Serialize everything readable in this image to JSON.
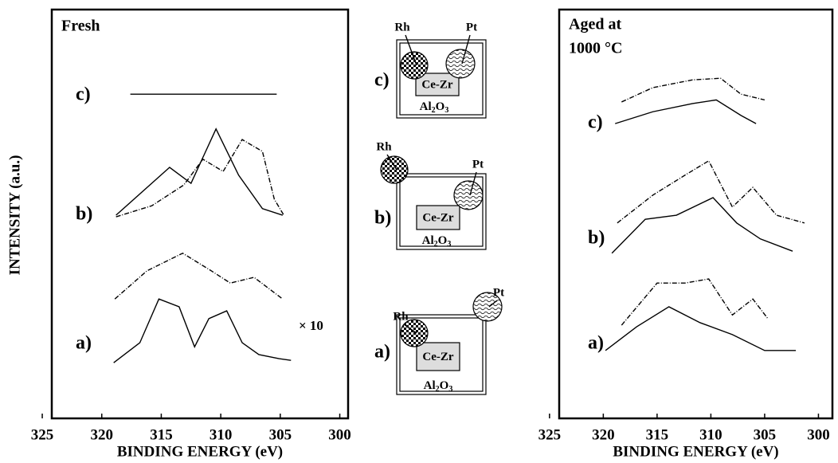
{
  "chart_data": [
    {
      "type": "line",
      "title": "Fresh",
      "ylabel": "INTENSITY (a.u.)",
      "xlabel": "BINDING ENERGY (eV)",
      "xlim": [
        324.2,
        299.3
      ],
      "xticks": [
        325,
        320,
        315,
        310,
        305,
        300
      ],
      "ylim": [
        0,
        100
      ],
      "curve_labels": [
        "c)",
        "b)",
        "a)"
      ],
      "note": "× 10",
      "series": [
        {
          "color": "#000",
          "dashed": false,
          "x": [
            317.6,
            305.3
          ],
          "values": [
            79.3,
            79.3
          ]
        },
        {
          "color": "#000",
          "dashed": false,
          "x": [
            318.8,
            314.3,
            312.5,
            310.4,
            308.5,
            306.5,
            304.8
          ],
          "values": [
            49.7,
            61.4,
            57.5,
            70.8,
            59.5,
            51.3,
            49.7
          ]
        },
        {
          "color": "#000",
          "dashed": true,
          "x": [
            318.8,
            315.8,
            313.1,
            311.5,
            309.8,
            308.2,
            306.5,
            305.5,
            304.7
          ],
          "values": [
            49.3,
            52.0,
            57.1,
            63.4,
            60.4,
            68.2,
            65.3,
            53.6,
            49.7
          ]
        },
        {
          "color": "#000",
          "dashed": true,
          "x": [
            318.9,
            316.2,
            313.2,
            310.8,
            309.2,
            307.2,
            304.8
          ],
          "values": [
            29.2,
            36.1,
            40.4,
            36.1,
            33.1,
            34.5,
            29.2
          ]
        },
        {
          "color": "#000",
          "dashed": false,
          "x": [
            319.0,
            316.8,
            315.2,
            313.5,
            312.2,
            311.0,
            309.5,
            308.2,
            306.8,
            305.1,
            304.1
          ],
          "values": [
            13.6,
            18.5,
            29.2,
            27.3,
            17.5,
            24.4,
            26.3,
            18.5,
            15.6,
            14.6,
            14.2
          ]
        }
      ]
    },
    {
      "type": "line",
      "title": [
        "Aged at",
        "1000 °C"
      ],
      "xlabel": "BINDING ENERGY (eV)",
      "xlim": [
        324.1,
        298.7
      ],
      "xticks": [
        325,
        320,
        315,
        310,
        305,
        300
      ],
      "ylim": [
        0,
        100
      ],
      "curve_labels": [
        "c)",
        "b)",
        "a)"
      ],
      "series": [
        {
          "color": "#000",
          "dashed": true,
          "x": [
            318.3,
            315.4,
            311.7,
            309.1,
            307.2,
            305.0
          ],
          "values": [
            77.4,
            80.9,
            82.8,
            83.2,
            79.3,
            77.9
          ]
        },
        {
          "color": "#000",
          "dashed": false,
          "x": [
            318.9,
            315.4,
            311.7,
            309.5,
            307.2,
            305.8
          ],
          "values": [
            72.1,
            75.0,
            77.0,
            77.9,
            74.1,
            72.1
          ]
        },
        {
          "color": "#000",
          "dashed": true,
          "x": [
            318.7,
            315.4,
            312.4,
            310.2,
            308.0,
            306.1,
            303.9,
            301.3
          ],
          "values": [
            47.8,
            54.6,
            59.5,
            63.0,
            51.7,
            56.5,
            49.7,
            47.8
          ]
        },
        {
          "color": "#000",
          "dashed": false,
          "x": [
            319.2,
            316.1,
            313.2,
            309.8,
            307.6,
            305.4,
            302.4
          ],
          "values": [
            40.4,
            48.7,
            49.7,
            54.0,
            47.8,
            43.9,
            40.9
          ]
        },
        {
          "color": "#000",
          "dashed": true,
          "x": [
            318.3,
            315.0,
            312.4,
            310.2,
            308.0,
            306.1,
            304.7
          ],
          "values": [
            22.8,
            33.1,
            33.1,
            34.1,
            25.3,
            29.2,
            24.4
          ]
        },
        {
          "color": "#000",
          "dashed": false,
          "x": [
            319.8,
            316.9,
            313.9,
            311.0,
            308.0,
            305.0,
            302.1
          ],
          "values": [
            16.6,
            22.4,
            27.3,
            23.4,
            20.5,
            16.6,
            16.6
          ]
        }
      ]
    }
  ],
  "diagram": {
    "panels": [
      {
        "label": "c)",
        "rh": "Rh",
        "pt": "Pt",
        "core": "Ce-Zr",
        "support": [
          "Al",
          "2",
          "O",
          "3"
        ]
      },
      {
        "label": "b)",
        "rh": "Rh",
        "pt": "Pt",
        "core": "Ce-Zr",
        "support": [
          "Al",
          "2",
          "O",
          "3"
        ]
      },
      {
        "label": "a)",
        "rh": "Rh",
        "pt": "Pt",
        "core": "Ce-Zr",
        "support": [
          "Al",
          "2",
          "O",
          "3"
        ]
      }
    ]
  }
}
